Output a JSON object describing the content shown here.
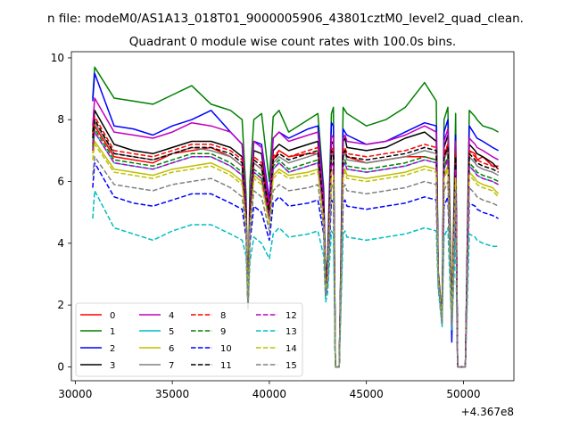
{
  "figure": {
    "suptitle": "n file: modeM0/AS1A13_018T01_9000005906_43801cztM0_level2_quad_clean.",
    "offset_label": "+4.367e8"
  },
  "chart_data": {
    "type": "line",
    "title": "Quadrant 0 module wise count rates with 100.0s bins.",
    "xlabel": "",
    "ylabel": "",
    "xlim": [
      29800,
      52600
    ],
    "ylim": [
      -0.45,
      10.2
    ],
    "x_offset": 436700000,
    "x_ticks": [
      30000,
      35000,
      40000,
      45000,
      50000
    ],
    "y_ticks": [
      0,
      2,
      4,
      6,
      8,
      10
    ],
    "grid": false,
    "legend_position": "lower-left",
    "x": [
      30900,
      31000,
      32000,
      33000,
      34000,
      35000,
      36000,
      37000,
      38000,
      38600,
      38800,
      38900,
      39000,
      39200,
      39600,
      40000,
      40200,
      40500,
      41000,
      42000,
      42500,
      42800,
      42900,
      43000,
      43200,
      43300,
      43400,
      43600,
      43800,
      43900,
      44000,
      45000,
      46000,
      47000,
      48000,
      48600,
      48700,
      48900,
      49000,
      49200,
      49400,
      49600,
      49700,
      49900,
      50000,
      50100,
      50300,
      50600,
      50700,
      51000,
      51500,
      51800
    ],
    "series": [
      {
        "name": "0",
        "color": "#ff0000",
        "style": "solid",
        "values": [
          7.2,
          7.8,
          6.8,
          6.7,
          6.6,
          6.9,
          7.0,
          7.1,
          6.8,
          6.5,
          5.0,
          1.9,
          4.8,
          6.6,
          6.4,
          5.0,
          6.7,
          7.0,
          6.8,
          6.9,
          6.9,
          5.0,
          2.5,
          3.2,
          6.8,
          6.9,
          0.0,
          0.0,
          6.9,
          7.0,
          6.8,
          6.6,
          6.7,
          6.8,
          6.8,
          6.7,
          3.0,
          1.5,
          6.8,
          7.2,
          1.5,
          7.0,
          0.0,
          0.0,
          0.0,
          0.0,
          7.0,
          6.9,
          6.7,
          6.8,
          6.5,
          6.5
        ]
      },
      {
        "name": "1",
        "color": "#008000",
        "style": "solid",
        "values": [
          8.7,
          9.7,
          8.7,
          8.6,
          8.5,
          8.8,
          9.1,
          8.5,
          8.3,
          8.0,
          5.6,
          1.9,
          6.0,
          8.0,
          8.2,
          6.0,
          8.1,
          8.3,
          7.6,
          8.0,
          8.2,
          5.8,
          2.7,
          3.6,
          8.2,
          8.4,
          0.0,
          0.0,
          8.4,
          8.3,
          8.2,
          7.8,
          8.0,
          8.4,
          9.2,
          8.6,
          3.1,
          1.7,
          8.0,
          8.4,
          1.6,
          8.2,
          0.0,
          0.0,
          0.0,
          0.0,
          8.3,
          8.1,
          8.0,
          7.8,
          7.7,
          7.6
        ]
      },
      {
        "name": "2",
        "color": "#0000ff",
        "style": "solid",
        "values": [
          8.6,
          9.5,
          7.8,
          7.7,
          7.5,
          7.8,
          8.0,
          8.3,
          7.6,
          7.2,
          5.3,
          1.9,
          5.2,
          7.3,
          7.2,
          5.4,
          7.4,
          7.6,
          7.4,
          7.7,
          7.8,
          5.6,
          2.6,
          3.4,
          7.9,
          7.8,
          0.0,
          0.0,
          7.7,
          7.6,
          7.5,
          7.2,
          7.3,
          7.6,
          7.9,
          7.8,
          3.0,
          1.6,
          7.6,
          8.0,
          0.8,
          7.5,
          0.0,
          0.0,
          0.0,
          0.0,
          7.8,
          7.5,
          7.4,
          7.3,
          7.1,
          7.0
        ]
      },
      {
        "name": "3",
        "color": "#000000",
        "style": "solid",
        "values": [
          7.6,
          8.3,
          7.2,
          7.0,
          6.9,
          7.1,
          7.3,
          7.3,
          7.1,
          6.8,
          5.0,
          1.9,
          5.0,
          7.0,
          6.9,
          5.0,
          7.0,
          7.2,
          7.0,
          7.2,
          7.3,
          5.2,
          2.5,
          3.2,
          7.3,
          7.2,
          0.0,
          0.0,
          7.3,
          7.4,
          7.1,
          7.0,
          7.1,
          7.4,
          7.6,
          7.3,
          3.0,
          1.5,
          7.1,
          7.5,
          1.5,
          7.1,
          0.0,
          0.0,
          0.0,
          0.0,
          7.2,
          7.0,
          6.9,
          6.8,
          6.6,
          6.4
        ]
      },
      {
        "name": "4",
        "color": "#bf00bf",
        "style": "solid",
        "values": [
          7.8,
          8.7,
          7.6,
          7.5,
          7.4,
          7.6,
          7.9,
          7.8,
          7.6,
          7.2,
          5.2,
          1.9,
          5.1,
          7.3,
          7.1,
          5.2,
          7.4,
          7.6,
          7.3,
          7.5,
          7.6,
          5.4,
          2.5,
          3.3,
          7.5,
          7.4,
          0.0,
          0.0,
          7.4,
          7.5,
          7.3,
          7.2,
          7.3,
          7.5,
          7.8,
          7.6,
          3.0,
          1.5,
          7.3,
          7.7,
          1.5,
          7.3,
          0.0,
          0.0,
          0.0,
          0.0,
          7.4,
          7.2,
          7.1,
          7.0,
          6.8,
          6.7
        ]
      },
      {
        "name": "5",
        "color": "#00bfbf",
        "style": "solid",
        "values": [
          7.0,
          7.6,
          6.6,
          6.5,
          6.4,
          6.6,
          6.8,
          6.8,
          6.5,
          6.2,
          4.8,
          1.9,
          4.7,
          6.3,
          6.1,
          4.8,
          6.4,
          6.6,
          6.3,
          6.5,
          6.6,
          4.9,
          2.4,
          3.0,
          6.6,
          6.5,
          0.0,
          0.0,
          6.5,
          6.6,
          6.4,
          6.3,
          6.4,
          6.5,
          6.7,
          6.6,
          2.9,
          1.5,
          6.4,
          6.7,
          1.4,
          6.4,
          0.0,
          0.0,
          0.0,
          0.0,
          6.5,
          6.3,
          6.2,
          6.1,
          6.0,
          5.9
        ]
      },
      {
        "name": "6",
        "color": "#bfbf00",
        "style": "solid",
        "values": [
          6.9,
          7.3,
          6.4,
          6.3,
          6.2,
          6.4,
          6.5,
          6.6,
          6.3,
          6.0,
          4.7,
          1.9,
          4.6,
          6.2,
          6.0,
          4.7,
          6.2,
          6.4,
          6.2,
          6.3,
          6.4,
          4.8,
          2.4,
          3.0,
          6.4,
          6.3,
          0.0,
          0.0,
          6.3,
          6.4,
          6.2,
          6.1,
          6.2,
          6.3,
          6.5,
          6.4,
          2.9,
          1.5,
          6.2,
          6.5,
          1.4,
          6.2,
          0.0,
          0.0,
          0.0,
          0.0,
          6.3,
          6.1,
          6.0,
          5.9,
          5.8,
          5.6
        ]
      },
      {
        "name": "7",
        "color": "#808080",
        "style": "solid",
        "values": [
          7.3,
          7.9,
          6.9,
          6.8,
          6.7,
          6.9,
          7.1,
          7.0,
          6.8,
          6.5,
          4.9,
          1.9,
          4.8,
          6.6,
          6.4,
          4.9,
          6.6,
          6.8,
          6.6,
          6.8,
          6.9,
          5.0,
          2.5,
          3.1,
          6.9,
          6.8,
          0.0,
          0.0,
          6.8,
          6.9,
          6.7,
          6.6,
          6.7,
          6.8,
          7.0,
          6.9,
          2.9,
          1.5,
          6.7,
          7.0,
          1.5,
          6.7,
          0.0,
          0.0,
          0.0,
          0.0,
          6.8,
          6.6,
          6.5,
          6.4,
          6.3,
          6.2
        ]
      },
      {
        "name": "8",
        "color": "#ff0000",
        "style": "dashed",
        "values": [
          7.5,
          8.1,
          7.0,
          6.9,
          6.8,
          7.0,
          7.2,
          7.2,
          7.0,
          6.7,
          5.0,
          1.9,
          4.9,
          6.8,
          6.6,
          5.0,
          6.8,
          7.0,
          6.8,
          7.0,
          7.1,
          5.1,
          2.5,
          3.2,
          7.1,
          7.0,
          0.0,
          0.0,
          7.0,
          7.1,
          6.9,
          6.8,
          6.9,
          7.0,
          7.2,
          7.1,
          3.0,
          1.5,
          6.9,
          7.2,
          1.5,
          6.9,
          0.0,
          0.0,
          0.0,
          0.0,
          7.0,
          6.8,
          6.7,
          6.6,
          6.5,
          6.4
        ]
      },
      {
        "name": "9",
        "color": "#008000",
        "style": "dashed",
        "values": [
          7.1,
          7.7,
          6.7,
          6.6,
          6.5,
          6.7,
          6.9,
          6.9,
          6.6,
          6.3,
          4.8,
          1.9,
          4.7,
          6.4,
          6.2,
          4.8,
          6.5,
          6.7,
          6.4,
          6.6,
          6.7,
          4.9,
          2.4,
          3.1,
          6.7,
          6.6,
          0.0,
          0.0,
          6.6,
          6.7,
          6.5,
          6.4,
          6.5,
          6.6,
          6.8,
          6.7,
          2.9,
          1.5,
          6.5,
          6.8,
          1.4,
          6.5,
          0.0,
          0.0,
          0.0,
          0.0,
          6.6,
          6.4,
          6.3,
          6.2,
          6.1,
          6.0
        ]
      },
      {
        "name": "10",
        "color": "#0000ff",
        "style": "dashed",
        "values": [
          5.8,
          6.6,
          5.5,
          5.3,
          5.2,
          5.4,
          5.6,
          5.6,
          5.3,
          5.1,
          4.2,
          1.9,
          4.0,
          5.2,
          5.0,
          4.1,
          5.3,
          5.5,
          5.2,
          5.3,
          5.4,
          4.3,
          2.3,
          2.7,
          5.4,
          5.3,
          0.0,
          0.0,
          5.3,
          5.4,
          5.2,
          5.1,
          5.2,
          5.3,
          5.5,
          5.4,
          2.7,
          1.4,
          5.2,
          5.5,
          1.3,
          5.2,
          0.0,
          0.0,
          0.0,
          0.0,
          5.3,
          5.2,
          5.1,
          5.0,
          4.9,
          4.8
        ]
      },
      {
        "name": "11",
        "color": "#000000",
        "style": "dashed",
        "values": [
          7.4,
          8.0,
          6.9,
          6.8,
          6.7,
          6.9,
          7.1,
          7.1,
          6.9,
          6.6,
          5.0,
          1.9,
          4.9,
          6.7,
          6.5,
          5.0,
          6.7,
          6.9,
          6.7,
          6.9,
          7.0,
          5.1,
          2.5,
          3.1,
          7.0,
          6.9,
          0.0,
          0.0,
          6.9,
          7.0,
          6.8,
          6.7,
          6.8,
          6.9,
          7.1,
          7.0,
          3.0,
          1.5,
          6.8,
          7.1,
          1.5,
          6.8,
          0.0,
          0.0,
          0.0,
          0.0,
          6.9,
          6.7,
          6.6,
          6.5,
          6.4,
          6.3
        ]
      },
      {
        "name": "12",
        "color": "#bf00bf",
        "style": "dashed",
        "values": [
          7.0,
          7.6,
          6.6,
          6.5,
          6.4,
          6.6,
          6.8,
          6.8,
          6.5,
          6.2,
          4.8,
          1.9,
          4.7,
          6.3,
          6.1,
          4.8,
          6.4,
          6.6,
          6.3,
          6.5,
          6.6,
          4.9,
          2.4,
          3.0,
          6.6,
          6.5,
          0.0,
          0.0,
          6.5,
          6.6,
          6.4,
          6.3,
          6.4,
          6.5,
          6.7,
          6.6,
          2.9,
          1.5,
          6.4,
          6.7,
          1.4,
          6.4,
          0.0,
          0.0,
          0.0,
          0.0,
          6.5,
          6.3,
          6.2,
          6.1,
          6.0,
          5.9
        ]
      },
      {
        "name": "13",
        "color": "#00bfbf",
        "style": "dashed",
        "values": [
          4.8,
          5.7,
          4.5,
          4.3,
          4.1,
          4.4,
          4.6,
          4.6,
          4.3,
          4.1,
          3.6,
          1.9,
          3.4,
          4.2,
          4.0,
          3.5,
          4.3,
          4.5,
          4.2,
          4.3,
          4.4,
          3.6,
          2.1,
          2.4,
          4.4,
          4.3,
          0.0,
          0.0,
          4.3,
          4.4,
          4.2,
          4.1,
          4.2,
          4.3,
          4.5,
          4.4,
          2.5,
          1.3,
          4.2,
          4.5,
          1.2,
          4.2,
          0.0,
          0.0,
          0.0,
          0.0,
          4.3,
          4.2,
          4.1,
          4.0,
          3.9,
          3.9
        ]
      },
      {
        "name": "14",
        "color": "#bfbf00",
        "style": "dashed",
        "values": [
          6.7,
          7.2,
          6.3,
          6.2,
          6.1,
          6.3,
          6.4,
          6.5,
          6.2,
          5.9,
          4.6,
          1.9,
          4.5,
          6.1,
          5.9,
          4.6,
          6.1,
          6.3,
          6.1,
          6.2,
          6.3,
          4.7,
          2.4,
          2.9,
          6.3,
          6.2,
          0.0,
          0.0,
          6.2,
          6.3,
          6.1,
          6.0,
          6.1,
          6.2,
          6.4,
          6.3,
          2.9,
          1.5,
          6.1,
          6.4,
          1.4,
          6.1,
          0.0,
          0.0,
          0.0,
          0.0,
          6.2,
          6.0,
          5.9,
          5.8,
          5.7,
          5.5
        ]
      },
      {
        "name": "15",
        "color": "#808080",
        "style": "dashed",
        "values": [
          6.2,
          6.8,
          5.9,
          5.8,
          5.7,
          5.9,
          6.0,
          6.1,
          5.8,
          5.5,
          4.4,
          1.9,
          4.3,
          5.7,
          5.5,
          4.4,
          5.7,
          5.9,
          5.7,
          5.8,
          5.9,
          4.5,
          2.3,
          2.8,
          5.9,
          5.8,
          0.0,
          0.0,
          5.8,
          5.9,
          5.7,
          5.6,
          5.7,
          5.8,
          6.0,
          5.9,
          2.8,
          1.4,
          5.7,
          6.0,
          1.3,
          5.7,
          0.0,
          0.0,
          0.0,
          0.0,
          5.8,
          5.6,
          5.5,
          5.4,
          5.3,
          5.2
        ]
      }
    ]
  }
}
